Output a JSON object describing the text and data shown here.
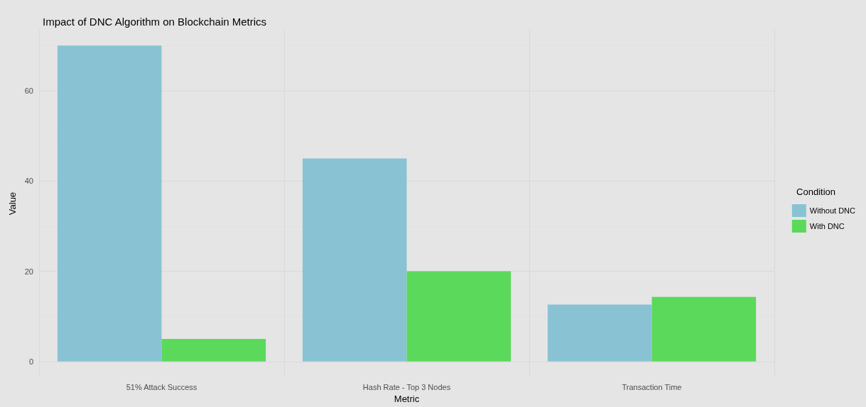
{
  "chart_data": {
    "type": "bar",
    "title": "Impact of DNC Algorithm on Blockchain Metrics",
    "xlabel": "Metric",
    "ylabel": "Value",
    "legend_title": "Condition",
    "categories": [
      "51% Attack Success",
      "Hash Rate - Top 3 Nodes",
      "Transaction Time"
    ],
    "series": [
      {
        "name": "Without DNC",
        "color": "#89c3d3",
        "values": [
          70,
          45,
          12.6
        ]
      },
      {
        "name": "With DNC",
        "color": "#5bd95b",
        "values": [
          5,
          20,
          14.3
        ]
      }
    ],
    "ylim": [
      -3.5,
      73.5
    ],
    "yticks": [
      0,
      20,
      40,
      60
    ],
    "grid": true,
    "legend": "right"
  }
}
